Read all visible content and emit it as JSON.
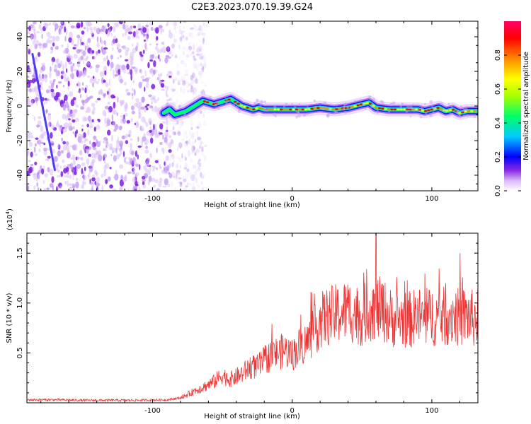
{
  "title": "C2E3.2023.070.19.39.G24",
  "chart_data": [
    {
      "type": "heatmap",
      "title": "C2E3.2023.070.19.39.G24",
      "xlabel": "Height of straight line (km)",
      "ylabel": "Frequency (Hz)",
      "xlim": [
        -190,
        133
      ],
      "ylim": [
        -49,
        49
      ],
      "xticks": [
        -100,
        0,
        100
      ],
      "yticks": [
        -40,
        -20,
        0,
        20,
        40
      ],
      "colorbar": {
        "label": "Normalized spectral amplitude",
        "range": [
          0,
          1
        ],
        "ticks": [
          0.0,
          0.2,
          0.4,
          0.6,
          0.8
        ],
        "colors": [
          "#ffffff",
          "#d8b8f8",
          "#8a2be2",
          "#0000ff",
          "#00ccff",
          "#00ff66",
          "#aaff00",
          "#ffff00",
          "#ff8800",
          "#ff0000",
          "#ff0066"
        ]
      },
      "noise_region_x": [
        -190,
        -72
      ],
      "diagonal_track": {
        "x": [
          -186,
          -170
        ],
        "y": [
          30,
          -37
        ]
      },
      "ridge": {
        "x": [
          -92,
          -88,
          -84,
          -80,
          -76,
          -72,
          -68,
          -64,
          -60,
          -56,
          -52,
          -48,
          -44,
          -40,
          -36,
          -32,
          -28,
          -24,
          -20,
          -10,
          0,
          10,
          20,
          30,
          40,
          50,
          55,
          60,
          70,
          80,
          90,
          95,
          100,
          105,
          110,
          115,
          120,
          125,
          130,
          133
        ],
        "y": [
          -4,
          -2,
          -5,
          -4,
          -3,
          -1,
          1,
          3,
          2,
          1,
          2,
          3,
          4,
          2,
          0,
          -1,
          -2,
          -1,
          -2,
          -2,
          -2,
          -2,
          -1,
          -2,
          -1,
          1,
          2,
          -1,
          -2,
          -2,
          -2,
          -3,
          -2,
          -1,
          -3,
          -2,
          -4,
          -3,
          -3,
          -3
        ]
      }
    },
    {
      "type": "line",
      "xlabel": "Height of straight line (km)",
      "ylabel": "SNR (10 * v/v)",
      "scale_label": "(x10",
      "scale_exp": "4",
      "scale_close": ")",
      "xlim": [
        -190,
        133
      ],
      "ylim": [
        0,
        17000
      ],
      "xticks": [
        -100,
        0,
        100
      ],
      "yticks": [
        5000,
        10000,
        15000
      ],
      "ytick_labels": [
        "0.5",
        "1.0",
        "1.5"
      ],
      "color": "#ee3333",
      "x": [
        -190,
        -170,
        -150,
        -130,
        -110,
        -90,
        -80,
        -75,
        -70,
        -65,
        -60,
        -55,
        -50,
        -45,
        -40,
        -35,
        -30,
        -25,
        -20,
        -15,
        -10,
        -5,
        0,
        5,
        10,
        15,
        20,
        25,
        30,
        35,
        40,
        45,
        50,
        55,
        60,
        65,
        70,
        75,
        80,
        85,
        90,
        95,
        100,
        105,
        110,
        115,
        120,
        125,
        130,
        133
      ],
      "y": [
        300,
        300,
        250,
        250,
        250,
        300,
        500,
        800,
        1200,
        1500,
        1800,
        2200,
        2800,
        2300,
        2600,
        3000,
        3600,
        3600,
        4200,
        4800,
        5000,
        5300,
        4800,
        5600,
        6000,
        7000,
        8200,
        8600,
        8800,
        9000,
        9300,
        9000,
        8600,
        9400,
        9500,
        9300,
        8600,
        8300,
        8400,
        8300,
        8700,
        8300,
        8700,
        8500,
        8700,
        8800,
        8500,
        8700,
        8400,
        8500
      ],
      "peak": {
        "x": 60,
        "y": 17000
      }
    }
  ]
}
